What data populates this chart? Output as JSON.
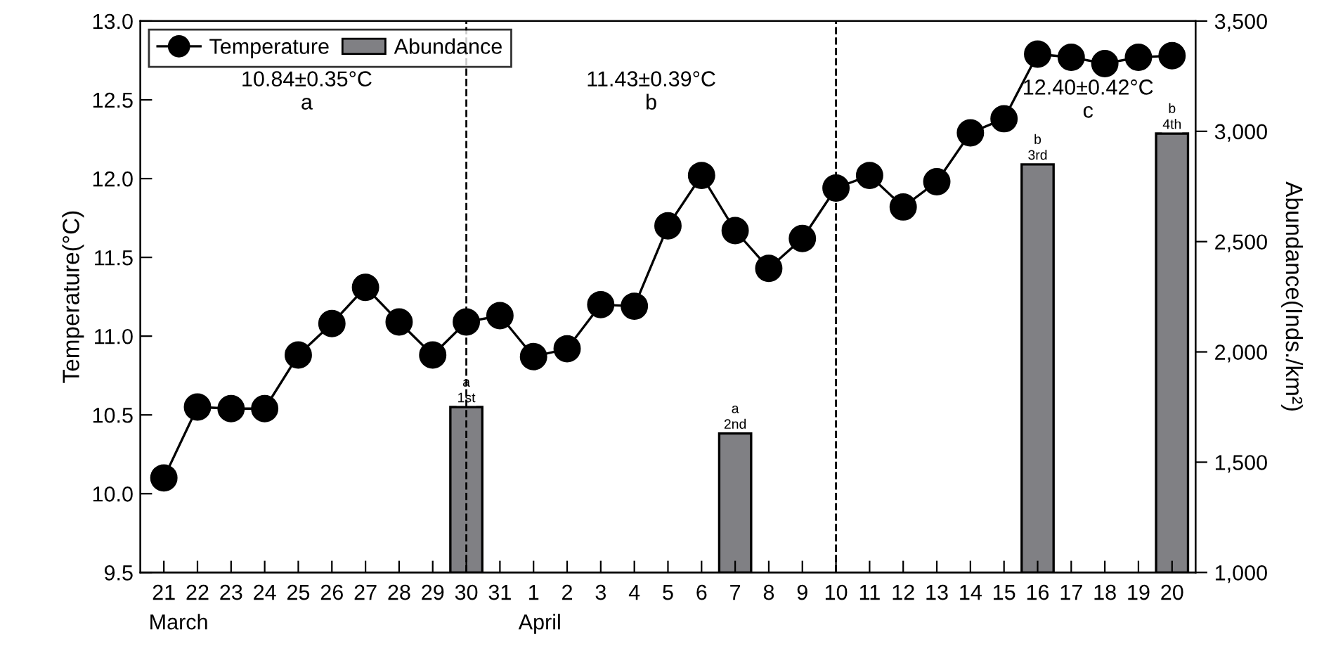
{
  "chart_data": {
    "type": "line",
    "categories": [
      "21",
      "22",
      "23",
      "24",
      "25",
      "26",
      "27",
      "28",
      "29",
      "30",
      "31",
      "1",
      "2",
      "3",
      "4",
      "5",
      "6",
      "7",
      "8",
      "9",
      "10",
      "11",
      "12",
      "13",
      "14",
      "15",
      "16",
      "17",
      "18",
      "19",
      "20"
    ],
    "ylabel": "Temperature(°C)",
    "y2label": "Abundance(Inds./km²)",
    "series": [
      {
        "name": "Temperature",
        "color": "#000000",
        "marker": "circle",
        "values": [
          10.1,
          10.55,
          10.54,
          10.54,
          10.88,
          11.08,
          11.31,
          11.09,
          10.88,
          11.09,
          11.13,
          10.87,
          10.92,
          11.2,
          11.19,
          11.7,
          12.02,
          11.67,
          11.43,
          11.62,
          11.94,
          12.02,
          11.82,
          11.98,
          12.29,
          12.38,
          12.79,
          12.77,
          12.73,
          12.77,
          12.78
        ]
      },
      {
        "name": "Abundance",
        "type": "bar",
        "axis": "y2",
        "color": "#808084",
        "values": [
          null,
          null,
          null,
          null,
          null,
          null,
          null,
          null,
          null,
          1750,
          null,
          null,
          null,
          null,
          null,
          null,
          null,
          1630,
          null,
          null,
          null,
          null,
          null,
          null,
          null,
          null,
          2850,
          null,
          null,
          null,
          2990
        ]
      }
    ],
    "ylim": [
      9.5,
      13.0
    ],
    "yticks": [
      9.5,
      {
        "value": 10,
        "label": "10.0"
      },
      10.5,
      {
        "value": 11,
        "label": "11.0"
      },
      11.5,
      {
        "value": 12,
        "label": "12.0"
      },
      12.5,
      {
        "value": 13,
        "label": "13.0"
      }
    ],
    "y2lim": [
      1000,
      3500
    ],
    "y2ticks": [
      {
        "value": 1000,
        "label": "1,000"
      },
      {
        "value": 1500,
        "label": "1,500"
      },
      {
        "value": 2000,
        "label": "2,000"
      },
      {
        "value": 2500,
        "label": "2,500"
      },
      {
        "value": 3000,
        "label": "3,000"
      },
      {
        "value": 3500,
        "label": "3,500"
      }
    ],
    "ref_lines": [
      {
        "axis": "x",
        "value": "30",
        "line_style": "dashed",
        "color": "#000000"
      },
      {
        "axis": "x",
        "value": "10",
        "line_style": "dashed",
        "color": "#000000"
      }
    ],
    "annotations": [
      "10.84±0.35°C\na",
      "11.43±0.39°C\nb",
      "12.40±0.42°C\nc",
      "March",
      "April",
      "a\n1st",
      "a\n2nd",
      "b\n3rd",
      "b\n4th"
    ],
    "legend": "top left",
    "grid": false
  }
}
